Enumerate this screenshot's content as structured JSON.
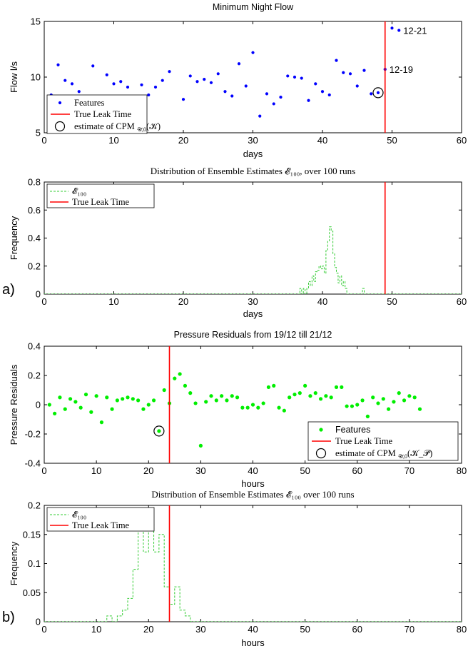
{
  "figure_labels": {
    "a": "a)",
    "b": "b)"
  },
  "chart_data": [
    {
      "type": "scatter",
      "title": "Minimum Night Flow",
      "xlabel": "days",
      "ylabel": "Flow l/s",
      "xlim": [
        0,
        60
      ],
      "ylim": [
        5,
        15
      ],
      "xticks": [
        0,
        10,
        20,
        30,
        40,
        50,
        60
      ],
      "yticks": [
        5,
        10,
        15
      ],
      "grid": false,
      "legend_position": "bottom-left",
      "series": [
        {
          "name": "Features",
          "color": "#0000ff",
          "marker": "dot",
          "points": [
            [
              1,
              8.4
            ],
            [
              2,
              11.1
            ],
            [
              3,
              9.7
            ],
            [
              4,
              9.4
            ],
            [
              5,
              8.7
            ],
            [
              7,
              11.0
            ],
            [
              9,
              10.2
            ],
            [
              10,
              9.4
            ],
            [
              11,
              9.6
            ],
            [
              12,
              9.1
            ],
            [
              14,
              9.3
            ],
            [
              15,
              8.4
            ],
            [
              16,
              9.1
            ],
            [
              17,
              9.7
            ],
            [
              18,
              10.5
            ],
            [
              20,
              8.0
            ],
            [
              21,
              10.1
            ],
            [
              22,
              9.6
            ],
            [
              23,
              9.8
            ],
            [
              24,
              9.5
            ],
            [
              25,
              10.3
            ],
            [
              26,
              8.7
            ],
            [
              27,
              8.3
            ],
            [
              28,
              11.2
            ],
            [
              29,
              9.2
            ],
            [
              30,
              12.2
            ],
            [
              31,
              6.5
            ],
            [
              32,
              8.5
            ],
            [
              33,
              7.6
            ],
            [
              34,
              8.2
            ],
            [
              35,
              10.1
            ],
            [
              36,
              10.0
            ],
            [
              37,
              9.9
            ],
            [
              38,
              7.9
            ],
            [
              39,
              9.4
            ],
            [
              40,
              8.7
            ],
            [
              41,
              8.4
            ],
            [
              42,
              11.5
            ],
            [
              43,
              10.4
            ],
            [
              44,
              10.3
            ],
            [
              45,
              9.2
            ],
            [
              46,
              10.6
            ],
            [
              47,
              8.5
            ],
            [
              48,
              8.6
            ],
            [
              49,
              10.7
            ],
            [
              50,
              14.4
            ],
            [
              51,
              14.2
            ]
          ]
        },
        {
          "name": "True Leak Time",
          "color": "#ff0000",
          "x": 49
        },
        {
          "name": "estimate of CPM_{U,0}(K)",
          "marker": "circle",
          "x": 48,
          "y": 8.6
        }
      ],
      "legend": [
        "Features",
        "True Leak Time",
        "estimate of CPM"
      ],
      "legend_math": "𝒰,0",
      "legend_arg": "(𝒦)",
      "annotations": [
        {
          "text": "12-21",
          "x": 51,
          "y": 14.2
        },
        {
          "text": "12-19",
          "x": 49,
          "y": 10.7
        }
      ]
    },
    {
      "type": "line",
      "title": "Distribution of Ensemble Estimates 𝓔₁₀₀, over 100 runs",
      "xlabel": "days",
      "ylabel": "Frequency",
      "xlim": [
        0,
        60
      ],
      "ylim": [
        0,
        0.8
      ],
      "xticks": [
        0,
        10,
        20,
        30,
        40,
        50,
        60
      ],
      "yticks": [
        0,
        0.2,
        0.4,
        0.6,
        0.8
      ],
      "grid": false,
      "legend_position": "top-left",
      "series": [
        {
          "name": "𝓔₁₀₀",
          "style": "dashed-step",
          "color": "#33cc33",
          "x": [
            36.75,
            37,
            37.25,
            37.5,
            37.75,
            38,
            38.25,
            38.5,
            38.75,
            39,
            39.25,
            39.5,
            39.75,
            40,
            40.25,
            40.5,
            40.75,
            41,
            41.25,
            41.5,
            41.75,
            42,
            42.25,
            42.5,
            42.75,
            43,
            43.25,
            43.5,
            45.75,
            46
          ],
          "values": [
            0.04,
            0,
            0.04,
            0,
            0.04,
            0.09,
            0.06,
            0.13,
            0.09,
            0.16,
            0.17,
            0.2,
            0.18,
            0.2,
            0.15,
            0.31,
            0.38,
            0.48,
            0.45,
            0.29,
            0.19,
            0.15,
            0.08,
            0.13,
            0.06,
            0.09,
            0.04,
            0,
            0.04,
            0
          ]
        },
        {
          "name": "True Leak Time",
          "color": "#ff0000",
          "x": 49
        }
      ],
      "legend": [
        "𝓔₁₀₀",
        "True Leak Time"
      ]
    },
    {
      "type": "scatter",
      "title": "Pressure Residuals from 19/12 till 21/12",
      "xlabel": "hours",
      "ylabel": "Pressure Residuals",
      "xlim": [
        0,
        80
      ],
      "ylim": [
        -0.4,
        0.4
      ],
      "xticks": [
        0,
        10,
        20,
        30,
        40,
        50,
        60,
        70,
        80
      ],
      "yticks": [
        -0.4,
        -0.2,
        0,
        0.2,
        0.4
      ],
      "grid": false,
      "legend_position": "bottom-right",
      "series": [
        {
          "name": "Features",
          "color": "#00ee00",
          "marker": "dot",
          "points": [
            [
              1,
              0.0
            ],
            [
              2,
              -0.06
            ],
            [
              3,
              0.05
            ],
            [
              4,
              -0.03
            ],
            [
              5,
              0.04
            ],
            [
              6,
              0.02
            ],
            [
              7,
              -0.02
            ],
            [
              8,
              0.07
            ],
            [
              9,
              -0.05
            ],
            [
              10,
              0.06
            ],
            [
              11,
              -0.12
            ],
            [
              12,
              0.05
            ],
            [
              13,
              -0.03
            ],
            [
              14,
              0.03
            ],
            [
              15,
              0.04
            ],
            [
              16,
              0.05
            ],
            [
              17,
              0.04
            ],
            [
              18,
              0.03
            ],
            [
              19,
              -0.03
            ],
            [
              20,
              0.0
            ],
            [
              21,
              0.03
            ],
            [
              22,
              -0.18
            ],
            [
              23,
              0.1
            ],
            [
              24,
              0.01
            ],
            [
              25,
              0.18
            ],
            [
              26,
              0.21
            ],
            [
              27,
              0.13
            ],
            [
              28,
              0.08
            ],
            [
              29,
              0.01
            ],
            [
              30,
              -0.28
            ],
            [
              31,
              0.02
            ],
            [
              32,
              0.06
            ],
            [
              33,
              0.03
            ],
            [
              34,
              0.06
            ],
            [
              35,
              0.03
            ],
            [
              36,
              0.06
            ],
            [
              37,
              0.05
            ],
            [
              38,
              -0.02
            ],
            [
              39,
              -0.02
            ],
            [
              40,
              0.0
            ],
            [
              41,
              -0.02
            ],
            [
              42,
              0.01
            ],
            [
              43,
              0.12
            ],
            [
              44,
              0.13
            ],
            [
              45,
              -0.02
            ],
            [
              46,
              -0.04
            ],
            [
              47,
              0.05
            ],
            [
              48,
              0.07
            ],
            [
              49,
              0.08
            ],
            [
              50,
              0.13
            ],
            [
              51,
              0.06
            ],
            [
              52,
              0.08
            ],
            [
              53,
              0.04
            ],
            [
              54,
              0.06
            ],
            [
              55,
              0.05
            ],
            [
              56,
              0.12
            ],
            [
              57,
              0.12
            ],
            [
              58,
              -0.01
            ],
            [
              59,
              -0.01
            ],
            [
              60,
              0.0
            ],
            [
              61,
              0.03
            ],
            [
              62,
              -0.08
            ],
            [
              63,
              0.05
            ],
            [
              64,
              0.01
            ],
            [
              65,
              0.04
            ],
            [
              66,
              -0.03
            ],
            [
              67,
              0.02
            ],
            [
              68,
              0.08
            ],
            [
              69,
              0.03
            ],
            [
              70,
              0.06
            ],
            [
              71,
              0.05
            ],
            [
              72,
              -0.03
            ]
          ]
        },
        {
          "name": "True Leak Time",
          "color": "#ff0000",
          "x": 24
        },
        {
          "name": "estimate of CPM_{U,0}(K_P)",
          "marker": "circle",
          "x": 22,
          "y": -0.18
        }
      ],
      "legend": [
        "Features",
        "True Leak Time",
        "estimate of CPM"
      ],
      "legend_math": "𝒰,0",
      "legend_arg": "(𝒦_𝒫)"
    },
    {
      "type": "line",
      "title": "Distribution of Ensemble Estimates 𝓔₁₀₀ over 100 runs",
      "xlabel": "hours",
      "ylabel": "Frequency",
      "xlim": [
        0,
        80
      ],
      "ylim": [
        0,
        0.2
      ],
      "xticks": [
        0,
        10,
        20,
        30,
        40,
        50,
        60,
        70,
        80
      ],
      "yticks": [
        0,
        0.05,
        0.1,
        0.15,
        0.2
      ],
      "grid": false,
      "legend_position": "top-left",
      "series": [
        {
          "name": "𝓔₁₀₀",
          "style": "dashed-step",
          "color": "#33cc33",
          "x": [
            12,
            13,
            14,
            15,
            16,
            17,
            18,
            19,
            20,
            21,
            22,
            23,
            24,
            25,
            26,
            27,
            28
          ],
          "values": [
            0.01,
            0,
            0.01,
            0.02,
            0.04,
            0.09,
            0.16,
            0.12,
            0.17,
            0.12,
            0.15,
            0.06,
            0.03,
            0.06,
            0.02,
            0.01,
            0
          ]
        },
        {
          "name": "True Leak Time",
          "color": "#ff0000",
          "x": 24
        }
      ],
      "legend": [
        "𝓔₁₀₀",
        "True Leak Time"
      ]
    }
  ]
}
